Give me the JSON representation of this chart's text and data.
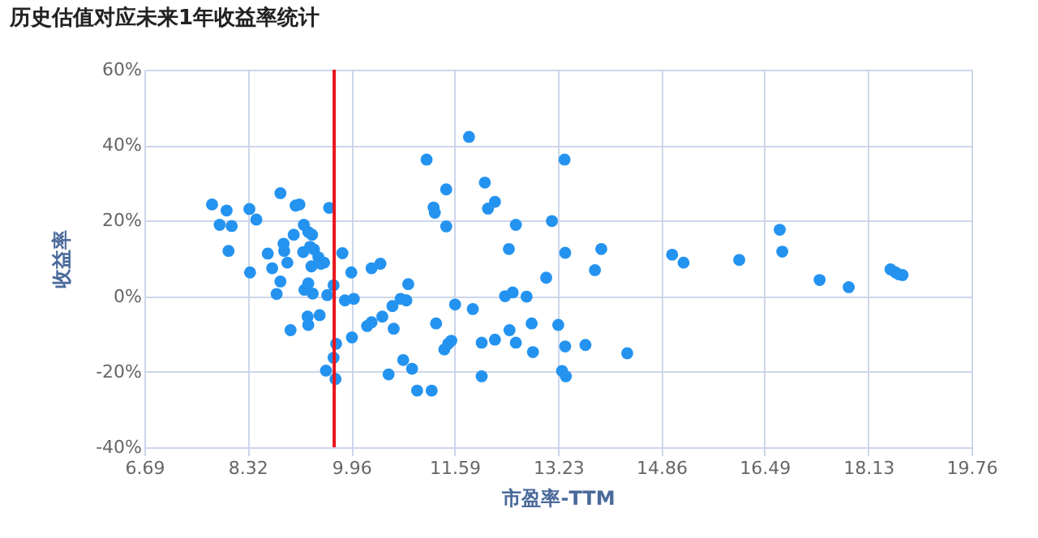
{
  "chart_data": {
    "type": "scatter",
    "title": "历史估值对应未来1年收益率统计",
    "xlabel": "市盈率-TTM",
    "ylabel": "收益率",
    "xlim": [
      6.69,
      19.76
    ],
    "xticks": [
      6.69,
      8.32,
      9.96,
      11.59,
      13.23,
      14.86,
      16.49,
      18.13,
      19.76
    ],
    "ylim": [
      -40,
      60
    ],
    "yticks": [
      {
        "value": -40,
        "label": "-40%"
      },
      {
        "value": -20,
        "label": "-20%"
      },
      {
        "value": 0,
        "label": "0%"
      },
      {
        "value": 20,
        "label": "20%"
      },
      {
        "value": 40,
        "label": "40%"
      },
      {
        "value": 60,
        "label": "60%"
      }
    ],
    "grid": true,
    "marker": "circle",
    "ref_lines": [
      {
        "axis": "x",
        "value": 9.69,
        "color": "#e8141b"
      }
    ],
    "series": [
      {
        "color": "#2493f0",
        "x": [
          7.76,
          7.99,
          7.88,
          8.07,
          8.02,
          8.35,
          8.46,
          8.36,
          8.84,
          9.08,
          9.14,
          9.05,
          8.64,
          8.71,
          8.89,
          8.9,
          8.95,
          8.84,
          8.78,
          9.0,
          9.21,
          9.28,
          9.34,
          9.2,
          9.31,
          9.37,
          9.44,
          9.48,
          9.33,
          9.53,
          9.22,
          9.28,
          9.35,
          9.27,
          9.28,
          9.46,
          9.61,
          9.58,
          9.68,
          9.82,
          9.96,
          9.86,
          10.0,
          9.72,
          9.68,
          9.56,
          9.71,
          9.97,
          10.28,
          10.42,
          10.86,
          10.74,
          10.83,
          10.61,
          10.45,
          10.28,
          10.21,
          10.63,
          11.3,
          10.78,
          10.92,
          10.55,
          11.0,
          11.23,
          11.6,
          11.88,
          11.43,
          11.49,
          11.54,
          12.02,
          12.23,
          12.02,
          12.39,
          12.51,
          12.73,
          12.46,
          12.56,
          12.81,
          12.83,
          13.23,
          13.34,
          13.66,
          14.32,
          13.29,
          13.35,
          11.82,
          11.15,
          13.33,
          11.46,
          12.07,
          11.26,
          11.28,
          11.46,
          12.12,
          12.23,
          12.56,
          13.13,
          12.45,
          13.34,
          13.91,
          13.81,
          13.04,
          15.03,
          15.21,
          16.09,
          16.73,
          16.77,
          17.36,
          17.82,
          18.48,
          18.56,
          18.61,
          18.67
        ],
        "values": [
          24.3,
          22.7,
          18.9,
          18.6,
          12.0,
          23.1,
          20.3,
          6.3,
          27.3,
          24.0,
          24.3,
          16.3,
          11.3,
          7.4,
          13.9,
          12.0,
          8.9,
          3.9,
          0.6,
          -9.0,
          18.9,
          17.0,
          16.3,
          11.7,
          13.1,
          12.4,
          10.3,
          8.6,
          7.9,
          8.9,
          1.7,
          3.4,
          0.7,
          -5.4,
          -7.6,
          -5.0,
          23.4,
          0.3,
          2.9,
          11.4,
          6.3,
          -1.1,
          -0.7,
          -12.6,
          -16.3,
          -19.7,
          -21.9,
          -10.9,
          7.4,
          8.6,
          3.2,
          -0.7,
          -1.1,
          -2.6,
          -5.4,
          -6.9,
          -7.9,
          -8.6,
          -7.2,
          -16.9,
          -19.2,
          -20.7,
          -25.0,
          -25.0,
          -2.2,
          -3.4,
          -14.1,
          -12.6,
          -11.8,
          -12.3,
          -11.5,
          -21.2,
          0.0,
          1.0,
          -0.1,
          -9.0,
          -12.3,
          -7.2,
          -14.8,
          -7.6,
          -13.3,
          -12.9,
          -15.1,
          -19.8,
          -21.2,
          42.2,
          36.2,
          36.2,
          28.3,
          30.1,
          23.5,
          22.1,
          18.5,
          23.2,
          25.0,
          18.9,
          19.9,
          12.5,
          11.5,
          12.5,
          6.9,
          4.9,
          11.0,
          8.9,
          9.6,
          17.6,
          11.8,
          4.3,
          2.4,
          7.1,
          6.3,
          5.8,
          5.6
        ]
      }
    ]
  }
}
